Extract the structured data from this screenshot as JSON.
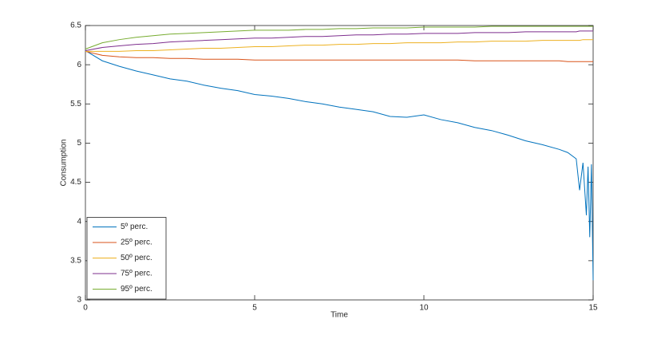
{
  "chart_data": {
    "type": "line",
    "xlabel": "Time",
    "ylabel": "Consumption",
    "x": [
      0,
      0.5,
      1,
      1.5,
      2,
      2.5,
      3,
      3.5,
      4,
      4.5,
      5,
      5.5,
      6,
      6.5,
      7,
      7.5,
      8,
      8.5,
      9,
      9.5,
      10,
      10.5,
      11,
      11.5,
      12,
      12.5,
      13,
      13.5,
      14,
      14.25,
      14.5,
      14.6,
      14.7,
      14.8,
      14.85,
      14.9,
      14.95,
      15
    ],
    "series": [
      {
        "name": "5º perc.",
        "color": "#0072BD",
        "values": [
          6.18,
          6.05,
          5.98,
          5.92,
          5.87,
          5.82,
          5.79,
          5.74,
          5.7,
          5.67,
          5.62,
          5.6,
          5.57,
          5.53,
          5.5,
          5.46,
          5.43,
          5.4,
          5.34,
          5.33,
          5.36,
          5.3,
          5.26,
          5.2,
          5.16,
          5.1,
          5.03,
          4.98,
          4.92,
          4.88,
          4.8,
          4.4,
          4.75,
          4.08,
          4.7,
          3.8,
          4.73,
          3.25
        ]
      },
      {
        "name": "25º perc.",
        "color": "#D95319",
        "values": [
          6.17,
          6.12,
          6.1,
          6.09,
          6.09,
          6.08,
          6.08,
          6.07,
          6.07,
          6.07,
          6.06,
          6.06,
          6.06,
          6.06,
          6.06,
          6.06,
          6.06,
          6.06,
          6.06,
          6.06,
          6.06,
          6.06,
          6.06,
          6.05,
          6.05,
          6.05,
          6.05,
          6.05,
          6.05,
          6.04,
          6.04,
          6.04,
          6.04,
          6.04,
          6.04,
          6.04,
          6.04,
          6.04
        ]
      },
      {
        "name": "50º perc.",
        "color": "#EDB120",
        "values": [
          6.17,
          6.17,
          6.17,
          6.18,
          6.18,
          6.19,
          6.2,
          6.21,
          6.21,
          6.22,
          6.23,
          6.23,
          6.24,
          6.25,
          6.25,
          6.26,
          6.26,
          6.27,
          6.27,
          6.28,
          6.28,
          6.28,
          6.29,
          6.29,
          6.3,
          6.3,
          6.3,
          6.31,
          6.31,
          6.31,
          6.31,
          6.31,
          6.32,
          6.32,
          6.32,
          6.32,
          6.32,
          6.32
        ]
      },
      {
        "name": "75º perc.",
        "color": "#7E2F8E",
        "values": [
          6.18,
          6.22,
          6.24,
          6.26,
          6.27,
          6.29,
          6.3,
          6.31,
          6.32,
          6.33,
          6.34,
          6.34,
          6.35,
          6.36,
          6.36,
          6.37,
          6.38,
          6.38,
          6.39,
          6.39,
          6.4,
          6.4,
          6.4,
          6.41,
          6.41,
          6.41,
          6.42,
          6.42,
          6.42,
          6.42,
          6.42,
          6.43,
          6.43,
          6.43,
          6.43,
          6.43,
          6.43,
          6.43
        ]
      },
      {
        "name": "95º perc.",
        "color": "#77AC30",
        "values": [
          6.2,
          6.28,
          6.32,
          6.35,
          6.37,
          6.39,
          6.4,
          6.41,
          6.42,
          6.43,
          6.44,
          6.44,
          6.44,
          6.45,
          6.45,
          6.46,
          6.46,
          6.47,
          6.47,
          6.47,
          6.48,
          6.48,
          6.48,
          6.48,
          6.49,
          6.49,
          6.49,
          6.49,
          6.49,
          6.49,
          6.49,
          6.49,
          6.49,
          6.49,
          6.49,
          6.49,
          6.49,
          6.49
        ]
      }
    ],
    "xlim": [
      0,
      15
    ],
    "xticks": [
      0,
      5,
      10,
      15
    ],
    "ylim": [
      3,
      6.5
    ],
    "yticks": [
      3,
      3.5,
      4,
      4.5,
      5,
      5.5,
      6,
      6.5
    ],
    "legend": "lower left"
  }
}
